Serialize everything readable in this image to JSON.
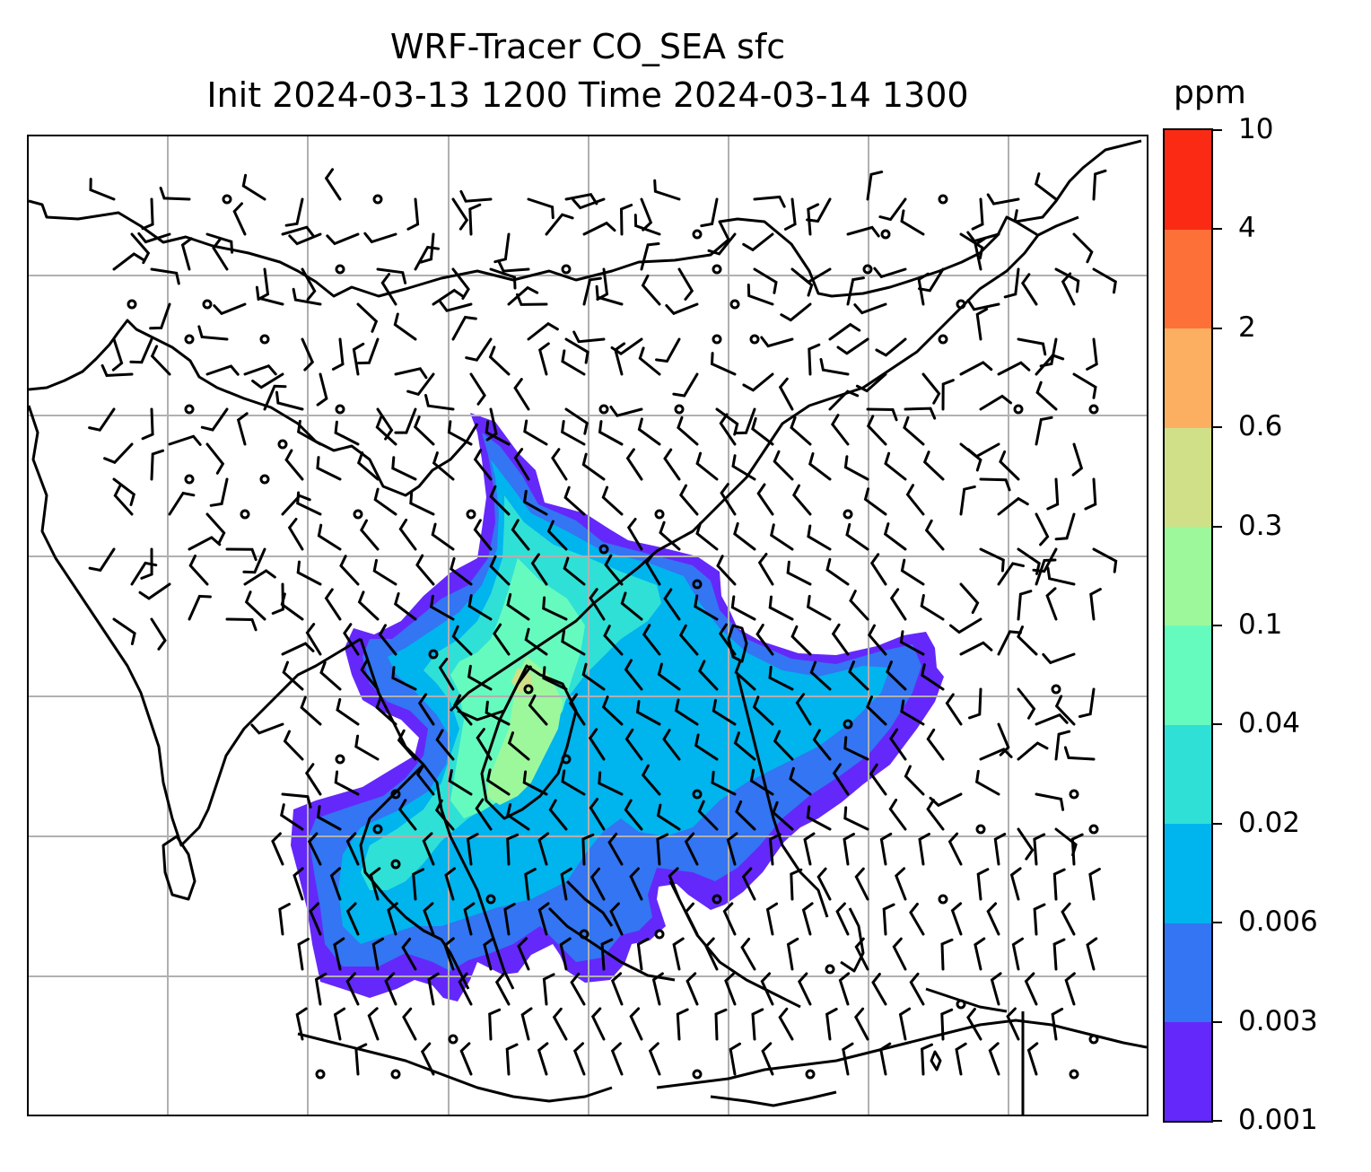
{
  "title": {
    "line1": "WRF-Tracer CO_SEA sfc",
    "line2": "Init 2024-03-13 1200 Time 2024-03-14 1300"
  },
  "map": {
    "field": "CO tracer concentration at surface with wind barbs",
    "gridlines": true,
    "coastline_color": "#000000",
    "gridline_color": "#b0b0b0"
  },
  "colorbar": {
    "unit": "ppm",
    "levels": [
      "0.001",
      "0.003",
      "0.006",
      "0.02",
      "0.04",
      "0.1",
      "0.3",
      "0.6",
      "2",
      "4",
      "10"
    ],
    "colors": [
      "#6428fa",
      "#3375f2",
      "#00b4ee",
      "#2fe0d6",
      "#66fbbe",
      "#9df89c",
      "#cfe089",
      "#fdaf61",
      "#fd7139",
      "#fa2a14"
    ]
  }
}
